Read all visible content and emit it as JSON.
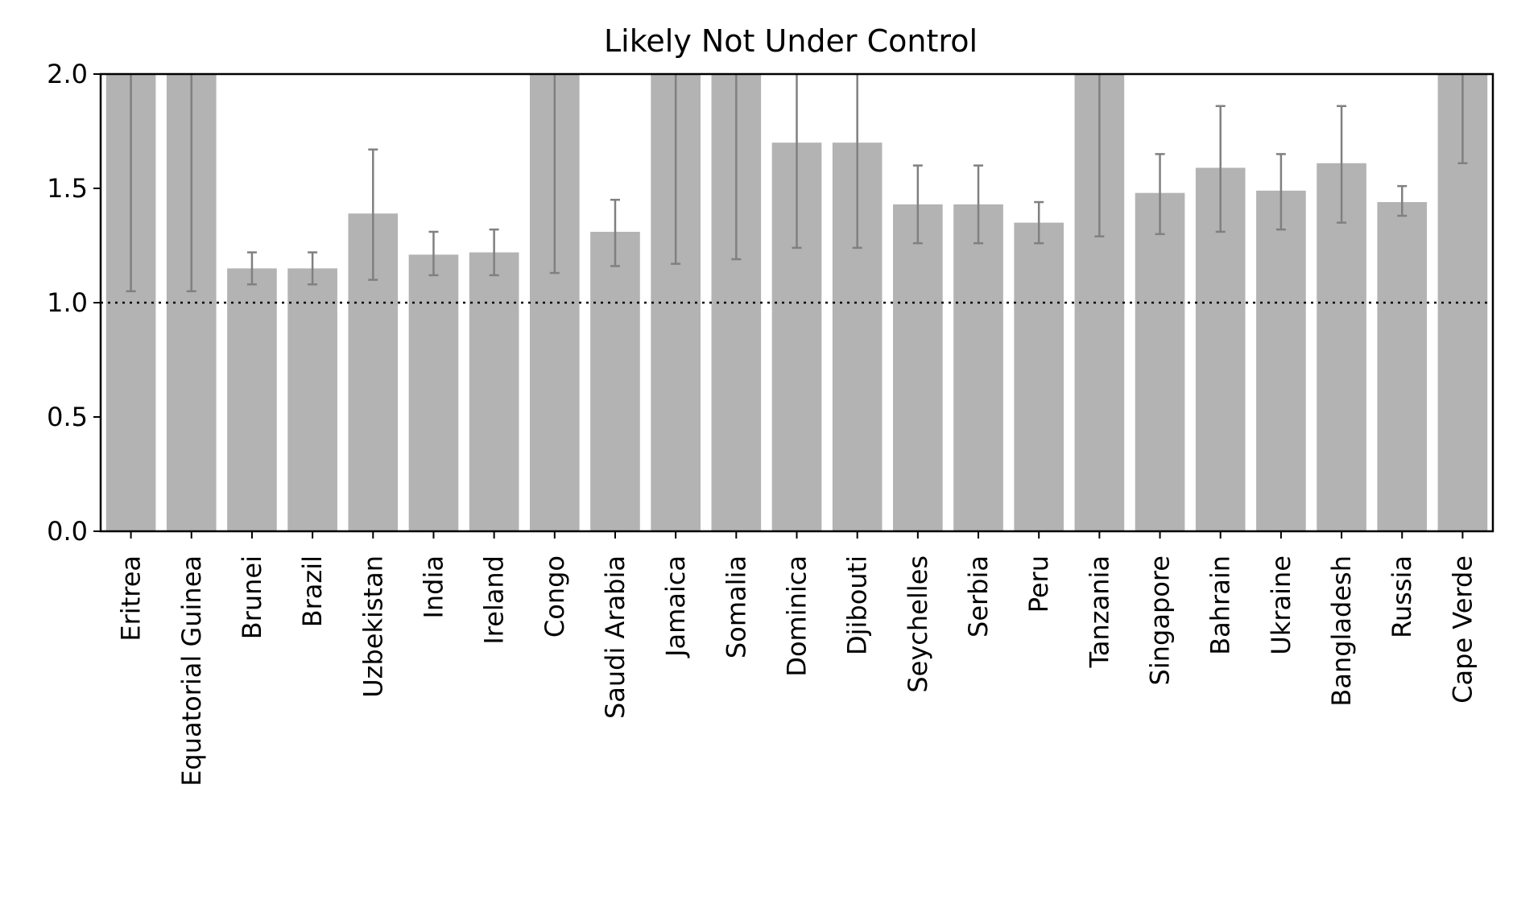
{
  "chart_data": {
    "type": "bar",
    "title": "Likely Not Under Control",
    "xlabel": "",
    "ylabel": "",
    "ylim": [
      0,
      2.0
    ],
    "yticks": [
      "0.0",
      "0.5",
      "1.0",
      "1.5",
      "2.0"
    ],
    "reference_line": {
      "y": 1.0,
      "style": "dotted",
      "color": "#000000"
    },
    "bar_color": "#b3b3b3",
    "errorbar_color": "#808080",
    "grid": false,
    "legend": "none",
    "categories": [
      "Eritrea",
      "Equatorial Guinea",
      "Brunei",
      "Brazil",
      "Uzbekistan",
      "India",
      "Ireland",
      "Congo",
      "Saudi Arabia",
      "Jamaica",
      "Somalia",
      "Dominica",
      "Djibouti",
      "Seychelles",
      "Serbia",
      "Peru",
      "Tanzania",
      "Singapore",
      "Bahrain",
      "Ukraine",
      "Bangladesh",
      "Russia",
      "Cape Verde"
    ],
    "values": [
      2.2,
      2.2,
      1.15,
      1.15,
      1.39,
      1.21,
      1.22,
      2.2,
      1.31,
      2.2,
      2.2,
      1.7,
      1.7,
      1.43,
      1.43,
      1.35,
      2.2,
      1.48,
      1.59,
      1.49,
      1.61,
      1.44,
      2.2
    ],
    "error_low": [
      1.05,
      1.05,
      1.08,
      1.08,
      1.1,
      1.12,
      1.12,
      1.13,
      1.16,
      1.17,
      1.19,
      1.24,
      1.24,
      1.26,
      1.26,
      1.26,
      1.29,
      1.3,
      1.31,
      1.32,
      1.35,
      1.38,
      1.61
    ],
    "error_high": [
      2.5,
      2.5,
      1.22,
      1.22,
      1.67,
      1.31,
      1.32,
      2.5,
      1.45,
      2.5,
      2.5,
      2.5,
      2.5,
      1.6,
      1.6,
      1.44,
      2.5,
      1.65,
      1.86,
      1.65,
      1.86,
      1.51,
      2.5
    ]
  }
}
